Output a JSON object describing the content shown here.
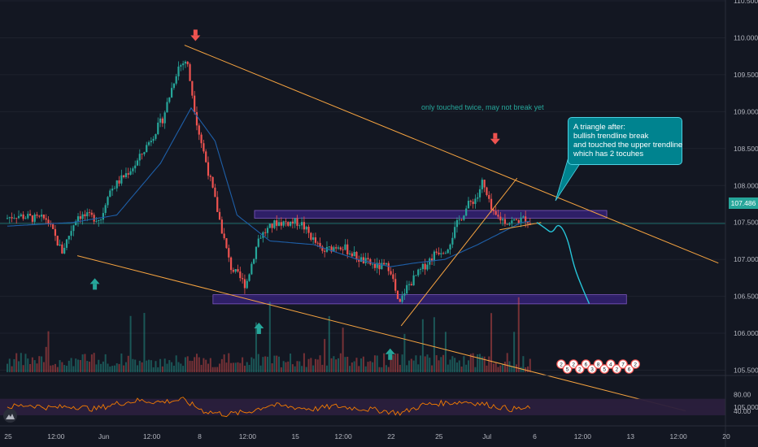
{
  "colors": {
    "background": "#131722",
    "up": "#26a69a",
    "down": "#ef5350",
    "trendline": "#f7a440",
    "zone": "#4527a0",
    "ma": "#1e5fa8",
    "rsi_line": "#f57c00",
    "rsi_band": "#2a1f3d",
    "projection": "#26c6da"
  },
  "chart_data": [
    {
      "type": "candlestick",
      "y_ticks": [
        "110.500",
        "110.000",
        "109.500",
        "109.000",
        "108.500",
        "108.000",
        "107.500",
        "107.000",
        "106.500",
        "106.000",
        "105.500",
        "105.000"
      ],
      "ylim": [
        104.95,
        110.55
      ],
      "x_ticks": [
        "25",
        "12:00",
        "Jun",
        "12:00",
        "8",
        "12:00",
        "15",
        "12:00",
        "22",
        "25",
        "Jul",
        "6",
        "12:00",
        "13",
        "12:00",
        "20"
      ],
      "last_price": "107.486",
      "close_path_by_day": [
        [
          0,
          107.55
        ],
        [
          0.5,
          107.6
        ],
        [
          1.4,
          107.55
        ],
        [
          1.9,
          107.55
        ],
        [
          2.6,
          107.1
        ],
        [
          3.3,
          107.6
        ],
        [
          4.4,
          107.55
        ],
        [
          4.7,
          107.9
        ],
        [
          6.0,
          108.3
        ],
        [
          7.2,
          108.9
        ],
        [
          7.9,
          109.6
        ],
        [
          8.3,
          109.7
        ],
        [
          8.8,
          108.8
        ],
        [
          9.6,
          107.8
        ],
        [
          10.3,
          106.9
        ],
        [
          11.0,
          106.65
        ],
        [
          11.6,
          107.3
        ],
        [
          12.4,
          107.5
        ],
        [
          13.5,
          107.5
        ],
        [
          14.5,
          107.1
        ],
        [
          15.3,
          107.2
        ],
        [
          16.2,
          107.0
        ],
        [
          17.0,
          106.9
        ],
        [
          17.6,
          106.9
        ],
        [
          18.0,
          106.35
        ],
        [
          18.3,
          106.6
        ],
        [
          19.0,
          106.85
        ],
        [
          19.7,
          107.1
        ],
        [
          20.2,
          107.15
        ],
        [
          20.7,
          107.5
        ],
        [
          21.2,
          107.75
        ],
        [
          21.6,
          107.85
        ],
        [
          21.8,
          108.05
        ],
        [
          22.3,
          107.6
        ],
        [
          23.0,
          107.5
        ],
        [
          23.8,
          107.55
        ],
        [
          24.0,
          107.5
        ]
      ],
      "moving_average": [
        [
          0,
          107.45
        ],
        [
          3.0,
          107.5
        ],
        [
          5.0,
          107.6
        ],
        [
          7.0,
          108.3
        ],
        [
          8.4,
          109.05
        ],
        [
          9.5,
          108.6
        ],
        [
          10.5,
          107.6
        ],
        [
          12.0,
          107.25
        ],
        [
          14.0,
          107.2
        ],
        [
          16.0,
          107.0
        ],
        [
          17.5,
          106.9
        ],
        [
          18.6,
          106.95
        ],
        [
          20.0,
          107.0
        ],
        [
          21.5,
          107.2
        ],
        [
          23.5,
          107.5
        ],
        [
          24.0,
          107.52
        ]
      ],
      "trendlines": [
        {
          "name": "upper",
          "from": [
            8.1,
            109.9
          ],
          "to": [
            32.5,
            106.95
          ]
        },
        {
          "name": "lower",
          "from": [
            3.2,
            107.05
          ],
          "to": [
            31.0,
            104.95
          ]
        },
        {
          "name": "rising",
          "from": [
            18.0,
            106.1
          ],
          "to": [
            23.3,
            108.1
          ]
        },
        {
          "name": "triangle-bottom",
          "from": [
            22.5,
            107.4
          ],
          "to": [
            24.4,
            107.5
          ]
        }
      ],
      "zones": [
        {
          "name": "resistance",
          "from": 11.3,
          "to": 27.4,
          "low": 107.58,
          "high": 107.64
        },
        {
          "name": "support",
          "from": 9.4,
          "to": 28.3,
          "low": 106.42,
          "high": 106.5
        }
      ],
      "projection": [
        [
          24.2,
          107.5
        ],
        [
          24.6,
          107.42
        ],
        [
          24.9,
          107.35
        ],
        [
          25.2,
          107.5
        ],
        [
          25.6,
          107.3
        ],
        [
          25.9,
          106.9
        ],
        [
          26.3,
          106.6
        ],
        [
          26.6,
          106.4
        ]
      ],
      "annotations": [
        {
          "name": "down-arrow",
          "x": 8.6,
          "y": 110.0
        },
        {
          "name": "down-arrow",
          "x": 22.3,
          "y": 108.6
        },
        {
          "name": "up-arrow",
          "x": 4.0,
          "y": 106.7
        },
        {
          "name": "up-arrow",
          "x": 11.5,
          "y": 106.1
        },
        {
          "name": "up-arrow",
          "x": 17.5,
          "y": 105.75
        }
      ],
      "volume_bars": 340
    },
    {
      "type": "line",
      "name": "rsi",
      "y_ticks": [
        "80.00",
        "40.00"
      ],
      "ylim": [
        20,
        95
      ],
      "band": [
        30,
        70
      ],
      "values_by_day": [
        [
          0,
          50
        ],
        [
          1,
          55
        ],
        [
          2,
          48
        ],
        [
          3,
          52
        ],
        [
          4,
          45
        ],
        [
          5,
          58
        ],
        [
          6,
          66
        ],
        [
          7,
          62
        ],
        [
          8,
          68
        ],
        [
          9,
          40
        ],
        [
          10,
          32
        ],
        [
          11,
          38
        ],
        [
          12,
          55
        ],
        [
          13,
          50
        ],
        [
          14,
          45
        ],
        [
          15,
          52
        ],
        [
          16,
          47
        ],
        [
          17,
          42
        ],
        [
          18,
          35
        ],
        [
          19,
          55
        ],
        [
          20,
          60
        ],
        [
          21,
          63
        ],
        [
          22,
          55
        ],
        [
          23,
          45
        ],
        [
          24,
          47
        ]
      ]
    }
  ],
  "note": "only touched twice, may not break  yet",
  "callout": {
    "lines": [
      "A triangle after:",
      "bullish trendline break",
      "and touched the upper trendline",
      "which has 2 tocuhes"
    ]
  },
  "pattern_markers": [
    "2",
    "5",
    "2",
    "2",
    "6",
    "3",
    "8",
    "5",
    "4",
    "2",
    "7",
    "6",
    "2"
  ]
}
